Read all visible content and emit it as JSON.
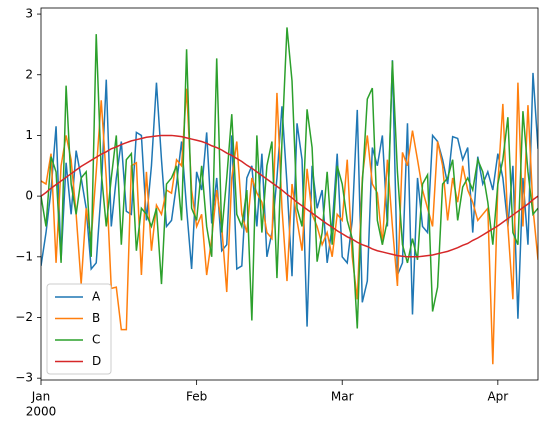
{
  "chart_data": {
    "type": "line",
    "x": [
      0,
      1,
      2,
      3,
      4,
      5,
      6,
      7,
      8,
      9,
      10,
      11,
      12,
      13,
      14,
      15,
      16,
      17,
      18,
      19,
      20,
      21,
      22,
      23,
      24,
      25,
      26,
      27,
      28,
      29,
      30,
      31,
      32,
      33,
      34,
      35,
      36,
      37,
      38,
      39,
      40,
      41,
      42,
      43,
      44,
      45,
      46,
      47,
      48,
      49,
      50,
      51,
      52,
      53,
      54,
      55,
      56,
      57,
      58,
      59,
      60,
      61,
      62,
      63,
      64,
      65,
      66,
      67,
      68,
      69,
      70,
      71,
      72,
      73,
      74,
      75,
      76,
      77,
      78,
      79,
      80,
      81,
      82,
      83,
      84,
      85,
      86,
      87,
      88,
      89,
      90,
      91,
      92,
      93,
      94,
      95,
      96,
      97,
      98,
      99
    ],
    "xlim": [
      0,
      99
    ],
    "xticks": [
      {
        "value": 0,
        "label": "Jan"
      },
      {
        "value": 31,
        "label": "Feb"
      },
      {
        "value": 60,
        "label": "Mar"
      },
      {
        "value": 91,
        "label": "Apr"
      }
    ],
    "xtick_sublabel": "2000",
    "ylim": [
      -3.03,
      3.1
    ],
    "yticks": [
      {
        "value": -3,
        "label": "−3"
      },
      {
        "value": -2,
        "label": "−2"
      },
      {
        "value": -1,
        "label": "−1"
      },
      0,
      1,
      2,
      3
    ],
    "legend": "lower left",
    "series": [
      {
        "name": "A",
        "color": "#1f77b4",
        "values": [
          -1.15,
          -0.6,
          0.1,
          1.15,
          -1.05,
          0.55,
          -0.3,
          0.75,
          0.3,
          -0.2,
          -1.2,
          -1.1,
          0.1,
          1.92,
          -0.5,
          0.3,
          0.9,
          -0.25,
          -0.3,
          1.05,
          1.0,
          -0.4,
          0.5,
          1.87,
          0.6,
          -0.5,
          -0.4,
          0.2,
          0.9,
          -0.2,
          -1.2,
          0.4,
          0.1,
          1.05,
          -0.45,
          0.3,
          -0.9,
          -0.8,
          1.0,
          -1.2,
          -1.15,
          0.3,
          0.5,
          -0.5,
          0.7,
          -1.0,
          -0.6,
          0.3,
          1.48,
          0.2,
          -1.32,
          1.2,
          0.6,
          -2.15,
          0.5,
          -0.2,
          0.1,
          -1.1,
          -0.5,
          0.7,
          -1.0,
          -1.1,
          -0.4,
          1.42,
          -1.75,
          -1.4,
          0.8,
          0.5,
          1.0,
          -0.5,
          2.24,
          -1.3,
          -1.1,
          1.2,
          -1.95,
          0.3,
          -0.5,
          -0.6,
          1.0,
          0.9,
          0.6,
          0.2,
          0.98,
          0.95,
          0.6,
          0.8,
          -0.6,
          0.65,
          0.2,
          0.4,
          0.1,
          0.7,
          0.3,
          -0.5,
          0.5,
          -2.02,
          0.3,
          -0.8,
          2.03,
          0.78
        ]
      },
      {
        "name": "B",
        "color": "#ff7f0e",
        "values": [
          0.25,
          0.2,
          0.7,
          -1.1,
          0.5,
          1.0,
          0.6,
          -0.3,
          -1.45,
          -0.2,
          -0.7,
          0.4,
          1.58,
          0.3,
          -1.52,
          -1.5,
          -2.2,
          -2.2,
          0.5,
          0.55,
          -1.3,
          0.4,
          -0.9,
          -0.15,
          -0.3,
          0.1,
          0.05,
          0.6,
          0.5,
          1.77,
          0.1,
          -0.5,
          -0.3,
          -1.3,
          -0.7,
          0.1,
          -0.5,
          -1.58,
          0.3,
          0.9,
          -0.3,
          -0.6,
          0.3,
          0.05,
          -0.1,
          -0.6,
          -0.7,
          1.7,
          -0.2,
          -1.4,
          0.2,
          -0.4,
          -0.9,
          0.45,
          -0.3,
          -0.5,
          -0.8,
          -0.6,
          -1.0,
          -0.3,
          -0.4,
          0.6,
          -1.0,
          -1.7,
          0.3,
          1.0,
          0.2,
          0.05,
          -0.8,
          0.6,
          -0.5,
          -1.48,
          0.72,
          0.5,
          1.08,
          0.6,
          0.1,
          -0.2,
          -0.5,
          0.9,
          0.5,
          -0.4,
          0.3,
          -0.1,
          0.5,
          0.1,
          -0.1,
          -0.4,
          -0.3,
          -0.2,
          -2.77,
          0.2,
          1.52,
          -0.5,
          -1.7,
          1.87,
          -0.5,
          1.5,
          -0.2,
          -1.05
        ]
      },
      {
        "name": "C",
        "color": "#2ca02c",
        "values": [
          0.0,
          -0.5,
          0.65,
          0.4,
          -1.1,
          1.82,
          0.2,
          -0.3,
          0.3,
          0.4,
          -1.0,
          2.67,
          0.4,
          -0.5,
          0.3,
          1.0,
          -0.8,
          0.6,
          0.7,
          -0.9,
          -0.2,
          -0.3,
          -0.5,
          -0.2,
          -1.45,
          0.2,
          0.3,
          0.5,
          -0.4,
          2.42,
          -0.2,
          -0.4,
          0.5,
          -0.5,
          -1.0,
          2.27,
          -0.6,
          0.3,
          1.35,
          -0.3,
          -0.5,
          0.1,
          -2.05,
          1.0,
          -0.6,
          0.5,
          0.9,
          -1.35,
          0.9,
          2.78,
          1.9,
          -0.2,
          -0.5,
          1.43,
          0.8,
          -1.08,
          -0.6,
          0.4,
          -0.8,
          0.5,
          0.2,
          -0.4,
          -0.7,
          -2.18,
          0.2,
          1.6,
          1.78,
          -0.4,
          -0.8,
          -0.4,
          2.23,
          0.4,
          -0.8,
          -1.1,
          -0.7,
          -1.05,
          0.2,
          0.35,
          -1.9,
          -1.5,
          0.2,
          0.3,
          0.6,
          -0.4,
          0.15,
          0.3,
          0.1,
          0.6,
          0.4,
          -0.1,
          -0.8,
          0.2,
          0.6,
          1.3,
          -0.6,
          -0.8,
          1.4,
          0.4,
          -0.3,
          -0.2
        ]
      },
      {
        "name": "D",
        "color": "#d62728",
        "values": [
          0,
          0.06,
          0.13,
          0.19,
          0.25,
          0.31,
          0.37,
          0.43,
          0.49,
          0.54,
          0.59,
          0.64,
          0.69,
          0.73,
          0.78,
          0.81,
          0.85,
          0.88,
          0.91,
          0.93,
          0.95,
          0.97,
          0.98,
          0.99,
          1.0,
          1.0,
          1.0,
          0.99,
          0.98,
          0.96,
          0.94,
          0.92,
          0.9,
          0.87,
          0.83,
          0.8,
          0.76,
          0.71,
          0.67,
          0.62,
          0.57,
          0.51,
          0.46,
          0.4,
          0.34,
          0.28,
          0.22,
          0.16,
          0.1,
          0.03,
          -0.03,
          -0.1,
          -0.16,
          -0.22,
          -0.28,
          -0.34,
          -0.4,
          -0.46,
          -0.51,
          -0.57,
          -0.62,
          -0.67,
          -0.71,
          -0.76,
          -0.8,
          -0.83,
          -0.87,
          -0.9,
          -0.92,
          -0.94,
          -0.96,
          -0.98,
          -0.99,
          -1.0,
          -1.0,
          -1.0,
          -0.99,
          -0.98,
          -0.97,
          -0.95,
          -0.93,
          -0.91,
          -0.88,
          -0.85,
          -0.81,
          -0.78,
          -0.73,
          -0.69,
          -0.64,
          -0.59,
          -0.54,
          -0.49,
          -0.43,
          -0.37,
          -0.31,
          -0.25,
          -0.19,
          -0.13,
          -0.06,
          0
        ]
      }
    ]
  }
}
